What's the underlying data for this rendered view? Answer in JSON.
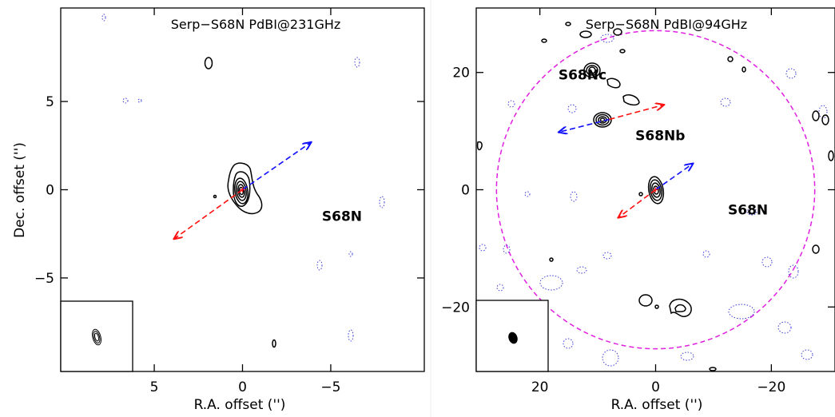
{
  "colors": {
    "contour_positive": "#000000",
    "contour_negative": "#3b3bd6",
    "outflow_blue": "#1010ff",
    "outflow_red": "#ff1010",
    "primary_beam": "#e020e0"
  },
  "chart_data": [
    {
      "type": "contour",
      "title": "Serp−S68N PdBI@231GHz",
      "xlabel": "R.A. offset ('')",
      "ylabel": "Dec. offset ('')",
      "xlim": [
        10.3,
        -10.3
      ],
      "ylim": [
        -10.3,
        10.3
      ],
      "xticks": [
        5,
        0,
        -5
      ],
      "xtick_labels": [
        "5",
        "0",
        "−5"
      ],
      "yticks": [
        -5,
        0,
        5
      ],
      "ytick_labels": [
        "−5",
        "0",
        "5"
      ],
      "sources": [
        {
          "name": "S68N",
          "x": 0,
          "y": 0,
          "label_x": -4.5,
          "label_y": -1.5
        }
      ],
      "outflow": {
        "blue_to": [
          -3.9,
          2.7
        ],
        "red_to": [
          3.9,
          -2.8
        ]
      },
      "beam_inset": true
    },
    {
      "type": "contour",
      "title": "Serp−S68N PdBI@94GHz",
      "xlabel": "R.A. offset ('')",
      "ylabel": "",
      "xlim": [
        31,
        -31
      ],
      "ylim": [
        -31,
        31
      ],
      "xticks": [
        20,
        0,
        -20
      ],
      "xtick_labels": [
        "20",
        "0",
        "−20"
      ],
      "yticks": [
        -20,
        0,
        20
      ],
      "ytick_labels": [
        "−20",
        "0",
        "20"
      ],
      "sources": [
        {
          "name": "S68N",
          "x": 0,
          "y": 0,
          "label_x": -12.5,
          "label_y": -3.4
        },
        {
          "name": "S68Nb",
          "x": 9.0,
          "y": 12.2,
          "label_x": 3.5,
          "label_y": 9.3
        },
        {
          "name": "S68Nc",
          "x": 10.8,
          "y": 20.5,
          "label_x": 16.8,
          "label_y": 19.6
        }
      ],
      "outflows": [
        {
          "origin": [
            0,
            0
          ],
          "blue_to": [
            -6.5,
            4.5
          ],
          "red_to": [
            6.5,
            -4.8
          ]
        },
        {
          "origin": [
            8.0,
            12.0
          ],
          "blue_to": [
            16.8,
            9.8
          ],
          "red_to": [
            -1.5,
            14.5
          ]
        }
      ],
      "primary_beam_radius": 27.5,
      "beam_inset": true
    }
  ]
}
